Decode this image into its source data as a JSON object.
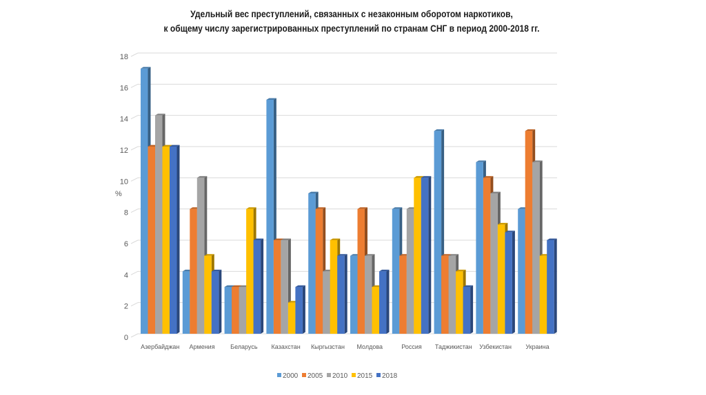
{
  "chart_data": {
    "type": "bar",
    "title_line1": "Удельный вес преступлений, связанных с незаконным оборотом наркотиков,",
    "title_line2": "к общему числу зарегистрированных преступлений по странам СНГ в период 2000-2018 гг.",
    "xlabel": "",
    "ylabel": "%",
    "ylim": [
      0,
      18
    ],
    "yticks": [
      "0",
      "2",
      "4",
      "6",
      "8",
      "10",
      "12",
      "14",
      "16",
      "18"
    ],
    "grid": true,
    "legend_position": "bottom",
    "categories": [
      "Азербайджан",
      "Армения",
      "Беларусь",
      "Казахстан",
      "Кыргызстан",
      "Молдова",
      "Россия",
      "Таджикистан",
      "Узбекистан",
      "Украина"
    ],
    "series": [
      {
        "name": "2000",
        "color": "#5B9BD5",
        "values": [
          17,
          4,
          3,
          15,
          9,
          5,
          8,
          13,
          11,
          8
        ]
      },
      {
        "name": "2005",
        "color": "#ED7D31",
        "values": [
          12,
          8,
          3,
          6,
          8,
          8,
          5,
          5,
          10,
          13
        ]
      },
      {
        "name": "2010",
        "color": "#A5A5A5",
        "values": [
          14,
          10,
          3,
          6,
          4,
          5,
          8,
          5,
          9,
          11
        ]
      },
      {
        "name": "2015",
        "color": "#FFC000",
        "values": [
          12,
          5,
          8,
          2,
          6,
          3,
          10,
          4,
          7,
          5
        ]
      },
      {
        "name": "2018",
        "color": "#4472C4",
        "values": [
          12,
          4,
          6,
          3,
          5,
          4,
          10,
          3,
          6.5,
          6
        ]
      }
    ]
  }
}
